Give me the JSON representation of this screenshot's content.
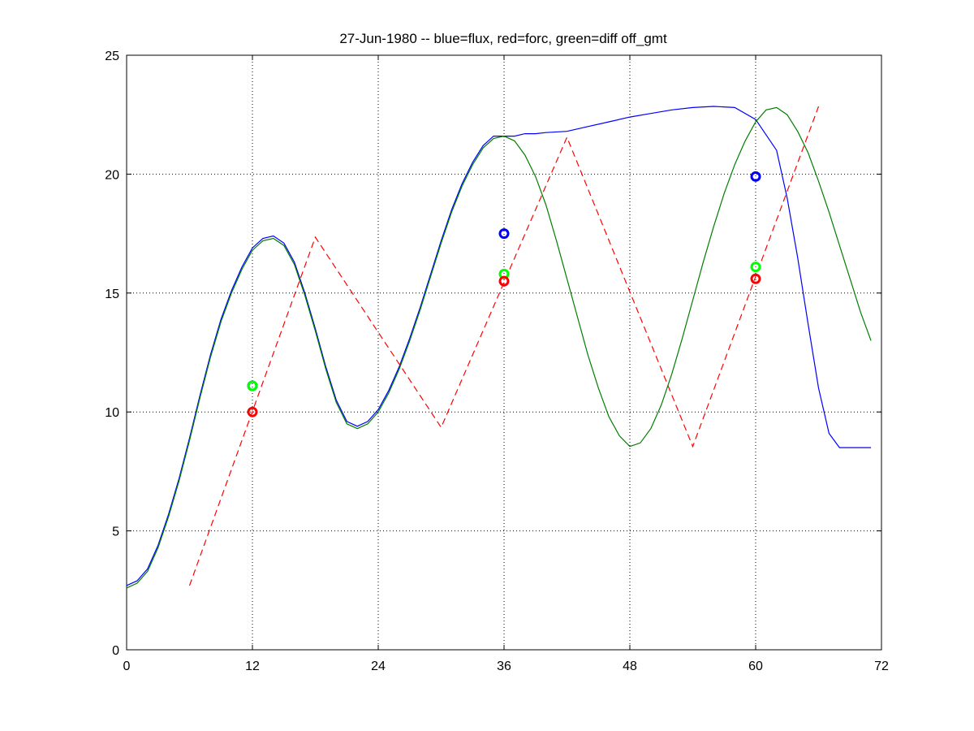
{
  "chart_data": {
    "type": "line",
    "title": "27-Jun-1980 -- blue=flux, red=forc, green=diff off_gmt",
    "xlabel": "",
    "ylabel": "",
    "xlim": [
      0,
      72
    ],
    "ylim": [
      0,
      25
    ],
    "xticks": [
      0,
      12,
      24,
      36,
      48,
      60,
      72
    ],
    "yticks": [
      0,
      5,
      10,
      15,
      20,
      25
    ],
    "grid": true,
    "grid_style": "dotted",
    "colors": {
      "flux": "#0000ff",
      "forc": "#ff0000",
      "diff": "#007f00",
      "diff_marker": "#00ff00"
    },
    "series": [
      {
        "key": "flux",
        "color": "#0000ff",
        "style": "solid",
        "x": [
          0,
          1,
          2,
          3,
          4,
          5,
          6,
          7,
          8,
          9,
          10,
          11,
          12,
          13,
          14,
          15,
          16,
          17,
          18,
          19,
          20,
          21,
          22,
          23,
          24,
          25,
          26,
          27,
          28,
          29,
          30,
          31,
          32,
          33,
          34,
          35,
          36,
          37,
          38,
          39,
          40,
          42,
          44,
          46,
          48,
          50,
          52,
          54,
          56,
          58,
          60,
          62,
          63,
          64,
          65,
          66,
          67,
          68,
          69,
          70,
          71
        ],
        "y": [
          2.7,
          2.9,
          3.4,
          4.4,
          5.7,
          7.2,
          8.9,
          10.7,
          12.4,
          13.9,
          15.1,
          16.1,
          16.9,
          17.3,
          17.4,
          17.1,
          16.3,
          15.0,
          13.5,
          11.9,
          10.5,
          9.6,
          9.4,
          9.6,
          10.1,
          10.9,
          11.9,
          13.1,
          14.4,
          15.8,
          17.2,
          18.5,
          19.6,
          20.5,
          21.2,
          21.6,
          21.6,
          21.6,
          21.7,
          21.7,
          21.75,
          21.8,
          22.0,
          22.2,
          22.4,
          22.55,
          22.7,
          22.8,
          22.85,
          22.8,
          22.3,
          21.0,
          19.0,
          16.5,
          13.7,
          11.0,
          9.1,
          8.5,
          8.5,
          8.5,
          8.5
        ]
      },
      {
        "key": "diff",
        "color": "#007f00",
        "style": "solid",
        "x": [
          0,
          1,
          2,
          3,
          4,
          5,
          6,
          7,
          8,
          9,
          10,
          11,
          12,
          13,
          14,
          15,
          16,
          17,
          18,
          19,
          20,
          21,
          22,
          23,
          24,
          25,
          26,
          27,
          28,
          29,
          30,
          31,
          32,
          33,
          34,
          35,
          36,
          37,
          38,
          39,
          40,
          41,
          42,
          43,
          44,
          45,
          46,
          47,
          48,
          49,
          50,
          51,
          52,
          53,
          54,
          55,
          56,
          57,
          58,
          59,
          60,
          61,
          62,
          63,
          64,
          65,
          66,
          67,
          68,
          69,
          70,
          71
        ],
        "y": [
          2.6,
          2.8,
          3.3,
          4.3,
          5.6,
          7.1,
          8.8,
          10.6,
          12.3,
          13.8,
          15.0,
          16.0,
          16.8,
          17.2,
          17.3,
          17.0,
          16.2,
          14.9,
          13.4,
          11.8,
          10.4,
          9.5,
          9.3,
          9.5,
          10.0,
          10.8,
          11.8,
          13.0,
          14.3,
          15.7,
          17.1,
          18.4,
          19.5,
          20.4,
          21.1,
          21.5,
          21.6,
          21.4,
          20.8,
          19.9,
          18.7,
          17.2,
          15.6,
          14.0,
          12.4,
          11.0,
          9.8,
          9.0,
          8.55,
          8.7,
          9.3,
          10.3,
          11.6,
          13.1,
          14.7,
          16.3,
          17.8,
          19.2,
          20.4,
          21.4,
          22.2,
          22.7,
          22.8,
          22.5,
          21.8,
          20.9,
          19.7,
          18.4,
          17.0,
          15.6,
          14.2,
          13.0
        ]
      },
      {
        "key": "forc",
        "color": "#ff0000",
        "style": "dashed",
        "x": [
          6,
          18,
          30,
          42,
          54,
          66
        ],
        "y": [
          2.7,
          17.35,
          9.35,
          21.55,
          8.55,
          22.85
        ]
      }
    ],
    "markers": [
      {
        "color": "#0000ff",
        "x": 12,
        "y": 11.1
      },
      {
        "color": "#00ff00",
        "x": 12,
        "y": 11.1
      },
      {
        "color": "#ff0000",
        "x": 12,
        "y": 10.0
      },
      {
        "color": "#0000ff",
        "x": 36,
        "y": 17.5
      },
      {
        "color": "#00ff00",
        "x": 36,
        "y": 15.8
      },
      {
        "color": "#ff0000",
        "x": 36,
        "y": 15.5
      },
      {
        "color": "#0000ff",
        "x": 60,
        "y": 19.9
      },
      {
        "color": "#00ff00",
        "x": 60,
        "y": 16.1
      },
      {
        "color": "#ff0000",
        "x": 60,
        "y": 15.6
      }
    ]
  }
}
